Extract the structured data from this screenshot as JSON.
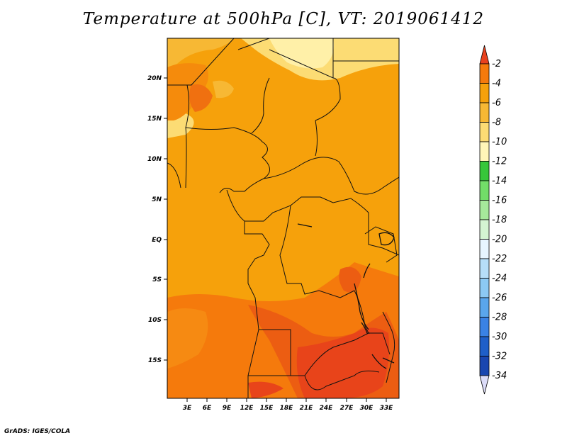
{
  "title": "Temperature at 500hPa [C], VT: 2019061412",
  "credit": "GrADS: IGES/COLA",
  "map": {
    "lat_labels": [
      "20N",
      "15N",
      "10N",
      "5N",
      "EQ",
      "5S",
      "10S",
      "15S"
    ],
    "lon_labels": [
      "3E",
      "6E",
      "9E",
      "12E",
      "15E",
      "18E",
      "21E",
      "24E",
      "27E",
      "30E",
      "33E"
    ]
  },
  "colorbar": {
    "labels": [
      "-2",
      "-4",
      "-6",
      "-8",
      "-10",
      "-12",
      "-14",
      "-16",
      "-18",
      "-20",
      "-22",
      "-24",
      "-26",
      "-28",
      "-30",
      "-32",
      "-34"
    ],
    "colors": [
      "#e8411e",
      "#f57a0c",
      "#f6a10b",
      "#f7b834",
      "#fcdc74",
      "#fff6b8",
      "#37c73a",
      "#72dd68",
      "#a6e89b",
      "#d4f4d2",
      "#e8f6ff",
      "#b6def8",
      "#8cc9f3",
      "#5aa6ec",
      "#3a82e4",
      "#1f5fc8",
      "#1946b0",
      "#0c1a78",
      "#dcdcf8"
    ]
  }
}
